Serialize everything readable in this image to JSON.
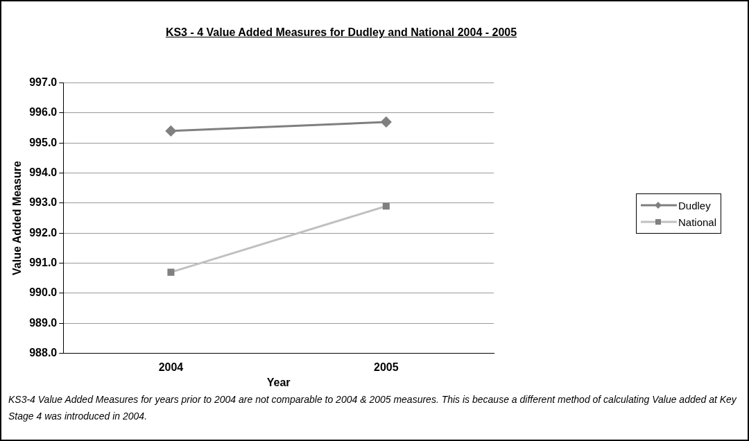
{
  "chart_data": {
    "type": "line",
    "title": "KS3 - 4 Value Added Measures for Dudley and National 2004 - 2005",
    "xlabel": "Year",
    "ylabel": "Value Added Measure",
    "categories": [
      "2004",
      "2005"
    ],
    "series": [
      {
        "name": "Dudley",
        "color": "#7f7f7f",
        "values": [
          995.4,
          995.7
        ],
        "marker": "diamond"
      },
      {
        "name": "National",
        "color": "#c0c0c0",
        "values": [
          990.7,
          992.9
        ],
        "marker": "square"
      }
    ],
    "ylim": [
      988,
      997
    ],
    "yticks": [
      {
        "value": 988,
        "label": "988.0"
      },
      {
        "value": 989,
        "label": "989.0"
      },
      {
        "value": 990,
        "label": "990.0"
      },
      {
        "value": 991,
        "label": "991.0"
      },
      {
        "value": 992,
        "label": "992.0"
      },
      {
        "value": 993,
        "label": "993.0"
      },
      {
        "value": 994,
        "label": "994.0"
      },
      {
        "value": 995,
        "label": "995.0"
      },
      {
        "value": 996,
        "label": "996.0"
      },
      {
        "value": 997,
        "label": "997.0"
      }
    ],
    "grid": "y",
    "legend": "right",
    "annotations": [
      "KS3-4 Value Added Measures for years prior to 2004 are not comparable to 2004 & 2005 measures. This is because a different method of calculating Value added at Key Stage 4 was introduced in 2004."
    ]
  }
}
